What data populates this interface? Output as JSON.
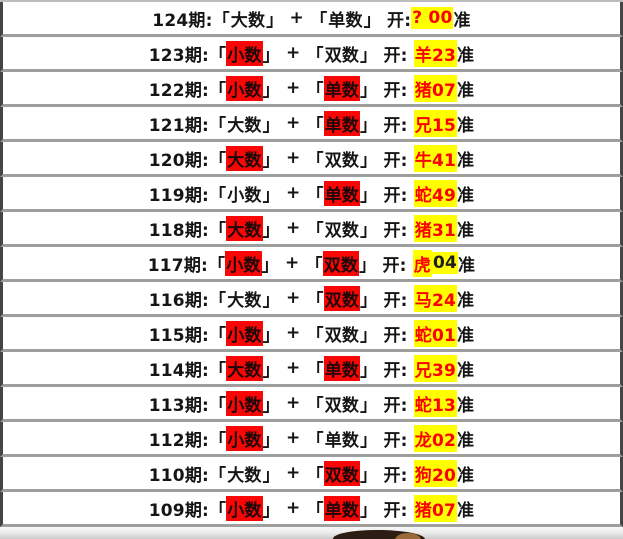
{
  "colors": {
    "term_highlight_bg": "#f90606",
    "result_highlight_bg": "#ffff00",
    "result_text_red": "#fd0000",
    "result_text_dark": "#1e1e1e",
    "row_text": "#151515",
    "row_separator": "#9e9e9e",
    "side_border": "#454545"
  },
  "format": {
    "lbracket": "「",
    "rbracket": "」",
    "plus": " + ",
    "suffix": "准"
  },
  "rows": [
    {
      "period": "124期:",
      "term1": "大数",
      "term1_hl": false,
      "term2": "单数",
      "term2_hl": false,
      "open": " 开:",
      "result": [
        {
          "text": "? 00",
          "dark": false
        }
      ]
    },
    {
      "period": "123期:",
      "term1": "小数",
      "term1_hl": true,
      "term2": "双数",
      "term2_hl": false,
      "open": " 开: ",
      "result": [
        {
          "text": "羊23",
          "dark": false
        }
      ]
    },
    {
      "period": "122期:",
      "term1": "小数",
      "term1_hl": true,
      "term2": "单数",
      "term2_hl": true,
      "open": " 开: ",
      "result": [
        {
          "text": "猪07",
          "dark": false
        }
      ]
    },
    {
      "period": "121期:",
      "term1": "大数",
      "term1_hl": false,
      "term2": "单数",
      "term2_hl": true,
      "open": " 开: ",
      "result": [
        {
          "text": "兄15",
          "dark": false
        }
      ]
    },
    {
      "period": "120期:",
      "term1": "大数",
      "term1_hl": true,
      "term2": "双数",
      "term2_hl": false,
      "open": " 开: ",
      "result": [
        {
          "text": "牛41",
          "dark": false
        }
      ]
    },
    {
      "period": "119期:",
      "term1": "小数",
      "term1_hl": false,
      "term2": "单数",
      "term2_hl": true,
      "open": " 开: ",
      "result": [
        {
          "text": "蛇49",
          "dark": false
        }
      ]
    },
    {
      "period": "118期:",
      "term1": "大数",
      "term1_hl": true,
      "term2": "双数",
      "term2_hl": false,
      "open": " 开: ",
      "result": [
        {
          "text": "猪31",
          "dark": false
        }
      ]
    },
    {
      "period": "117期:",
      "term1": "小数",
      "term1_hl": true,
      "term2": "双数",
      "term2_hl": true,
      "open": " 开: ",
      "result": [
        {
          "text": "虎",
          "dark": false
        },
        {
          "text": "04",
          "dark": true
        }
      ]
    },
    {
      "period": "116期:",
      "term1": "大数",
      "term1_hl": false,
      "term2": "双数",
      "term2_hl": true,
      "open": " 开: ",
      "result": [
        {
          "text": "马24",
          "dark": false
        }
      ]
    },
    {
      "period": "115期:",
      "term1": "小数",
      "term1_hl": true,
      "term2": "双数",
      "term2_hl": false,
      "open": " 开: ",
      "result": [
        {
          "text": "蛇01",
          "dark": false
        }
      ]
    },
    {
      "period": "114期:",
      "term1": "大数",
      "term1_hl": true,
      "term2": "单数",
      "term2_hl": true,
      "open": " 开: ",
      "result": [
        {
          "text": "兄39",
          "dark": false
        }
      ]
    },
    {
      "period": "113期:",
      "term1": "小数",
      "term1_hl": true,
      "term2": "双数",
      "term2_hl": false,
      "open": " 开: ",
      "result": [
        {
          "text": "蛇13",
          "dark": false
        }
      ]
    },
    {
      "period": "112期:",
      "term1": "小数",
      "term1_hl": true,
      "term2": "单数",
      "term2_hl": false,
      "open": " 开: ",
      "result": [
        {
          "text": "龙02",
          "dark": false
        }
      ]
    },
    {
      "period": "110期:",
      "term1": "大数",
      "term1_hl": false,
      "term2": "双数",
      "term2_hl": true,
      "open": " 开: ",
      "result": [
        {
          "text": "狗20",
          "dark": false
        }
      ]
    },
    {
      "period": "109期:",
      "term1": "小数",
      "term1_hl": true,
      "term2": "单数",
      "term2_hl": true,
      "open": " 开: ",
      "result": [
        {
          "text": "猪07",
          "dark": false
        }
      ]
    }
  ]
}
